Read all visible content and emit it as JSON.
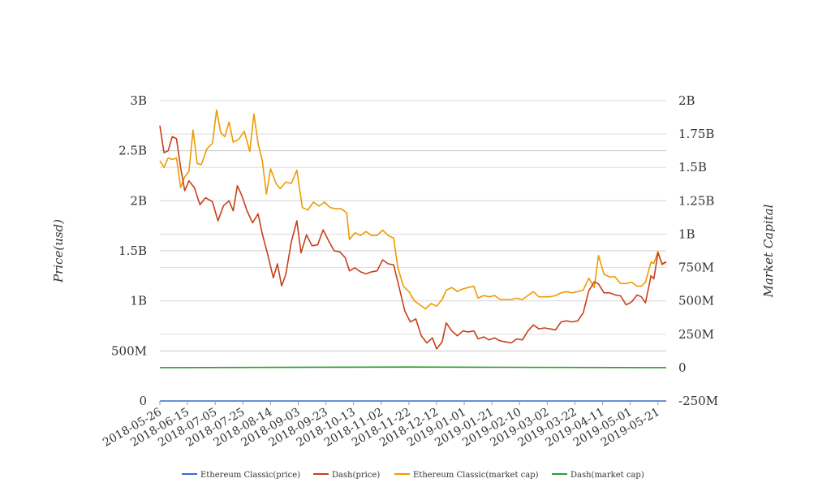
{
  "chart_data": {
    "type": "line",
    "title": "",
    "y_left_label": "Price(usd)",
    "y_right_label": "Market Capital",
    "x_ticks": [
      "2018-05-26",
      "2018-06-15",
      "2018-07-05",
      "2018-07-25",
      "2018-08-14",
      "2018-09-03",
      "2018-09-23",
      "2018-10-13",
      "2018-11-02",
      "2018-11-22",
      "2018-12-12",
      "2019-01-01",
      "2019-01-21",
      "2019-02-10",
      "2019-03-02",
      "2019-03-22",
      "2019-04-11",
      "2019-05-01",
      "2019-05-21"
    ],
    "x_range": [
      "2018-05-26",
      "2019-05-27"
    ],
    "y_left_ticks": [
      "0",
      "500M",
      "1B",
      "1.5B",
      "2B",
      "2.5B",
      "3B"
    ],
    "y_left_range": [
      0,
      3000000000
    ],
    "y_right_ticks": [
      "-250M",
      "0",
      "250M",
      "500M",
      "750M",
      "1B",
      "1.25B",
      "1.5B",
      "1.75B",
      "2B"
    ],
    "y_right_range": [
      -250000000,
      2000000000
    ],
    "legend_position": "bottom",
    "grid": true,
    "series": [
      {
        "name": "Ethereum Classic(price)",
        "axis": "left",
        "color": "#3a6bc9",
        "points": [
          [
            "2018-05-26",
            15
          ],
          [
            "2019-05-27",
            7
          ]
        ]
      },
      {
        "name": "Dash(price)",
        "axis": "left",
        "color": "#c7401a",
        "points": [
          [
            "2018-05-26",
            2750000000
          ],
          [
            "2018-05-29",
            2480000000
          ],
          [
            "2018-06-01",
            2500000000
          ],
          [
            "2018-06-04",
            2640000000
          ],
          [
            "2018-06-07",
            2620000000
          ],
          [
            "2018-06-10",
            2330000000
          ],
          [
            "2018-06-13",
            2100000000
          ],
          [
            "2018-06-16",
            2200000000
          ],
          [
            "2018-06-20",
            2130000000
          ],
          [
            "2018-06-24",
            1960000000
          ],
          [
            "2018-06-28",
            2030000000
          ],
          [
            "2018-07-03",
            1990000000
          ],
          [
            "2018-07-07",
            1800000000
          ],
          [
            "2018-07-11",
            1950000000
          ],
          [
            "2018-07-15",
            2000000000
          ],
          [
            "2018-07-18",
            1900000000
          ],
          [
            "2018-07-21",
            2150000000
          ],
          [
            "2018-07-24",
            2060000000
          ],
          [
            "2018-07-28",
            1900000000
          ],
          [
            "2018-08-01",
            1780000000
          ],
          [
            "2018-08-05",
            1870000000
          ],
          [
            "2018-08-08",
            1670000000
          ],
          [
            "2018-08-12",
            1460000000
          ],
          [
            "2018-08-16",
            1230000000
          ],
          [
            "2018-08-19",
            1370000000
          ],
          [
            "2018-08-22",
            1150000000
          ],
          [
            "2018-08-25",
            1260000000
          ],
          [
            "2018-08-29",
            1590000000
          ],
          [
            "2018-09-02",
            1800000000
          ],
          [
            "2018-09-05",
            1480000000
          ],
          [
            "2018-09-09",
            1660000000
          ],
          [
            "2018-09-13",
            1550000000
          ],
          [
            "2018-09-17",
            1560000000
          ],
          [
            "2018-09-21",
            1710000000
          ],
          [
            "2018-09-25",
            1600000000
          ],
          [
            "2018-09-29",
            1500000000
          ],
          [
            "2018-10-03",
            1490000000
          ],
          [
            "2018-10-07",
            1430000000
          ],
          [
            "2018-10-10",
            1300000000
          ],
          [
            "2018-10-14",
            1330000000
          ],
          [
            "2018-10-18",
            1290000000
          ],
          [
            "2018-10-22",
            1270000000
          ],
          [
            "2018-10-26",
            1290000000
          ],
          [
            "2018-10-30",
            1300000000
          ],
          [
            "2018-11-03",
            1410000000
          ],
          [
            "2018-11-07",
            1370000000
          ],
          [
            "2018-11-11",
            1360000000
          ],
          [
            "2018-11-15",
            1130000000
          ],
          [
            "2018-11-19",
            900000000
          ],
          [
            "2018-11-23",
            790000000
          ],
          [
            "2018-11-27",
            820000000
          ],
          [
            "2018-12-01",
            650000000
          ],
          [
            "2018-12-05",
            580000000
          ],
          [
            "2018-12-09",
            630000000
          ],
          [
            "2018-12-12",
            520000000
          ],
          [
            "2018-12-16",
            590000000
          ],
          [
            "2018-12-19",
            780000000
          ],
          [
            "2018-12-23",
            700000000
          ],
          [
            "2018-12-27",
            650000000
          ],
          [
            "2018-12-31",
            700000000
          ],
          [
            "2019-01-04",
            690000000
          ],
          [
            "2019-01-08",
            700000000
          ],
          [
            "2019-01-11",
            620000000
          ],
          [
            "2019-01-15",
            640000000
          ],
          [
            "2019-01-19",
            610000000
          ],
          [
            "2019-01-23",
            630000000
          ],
          [
            "2019-01-27",
            600000000
          ],
          [
            "2019-01-31",
            590000000
          ],
          [
            "2019-02-04",
            580000000
          ],
          [
            "2019-02-08",
            620000000
          ],
          [
            "2019-02-12",
            610000000
          ],
          [
            "2019-02-16",
            700000000
          ],
          [
            "2019-02-20",
            760000000
          ],
          [
            "2019-02-24",
            720000000
          ],
          [
            "2019-02-28",
            730000000
          ],
          [
            "2019-03-04",
            720000000
          ],
          [
            "2019-03-08",
            710000000
          ],
          [
            "2019-03-12",
            790000000
          ],
          [
            "2019-03-16",
            800000000
          ],
          [
            "2019-03-20",
            790000000
          ],
          [
            "2019-03-24",
            800000000
          ],
          [
            "2019-03-28",
            880000000
          ],
          [
            "2019-04-01",
            1100000000
          ],
          [
            "2019-04-05",
            1190000000
          ],
          [
            "2019-04-08",
            1170000000
          ],
          [
            "2019-04-12",
            1080000000
          ],
          [
            "2019-04-16",
            1080000000
          ],
          [
            "2019-04-20",
            1060000000
          ],
          [
            "2019-04-24",
            1050000000
          ],
          [
            "2019-04-28",
            960000000
          ],
          [
            "2019-05-02",
            990000000
          ],
          [
            "2019-05-06",
            1060000000
          ],
          [
            "2019-05-09",
            1040000000
          ],
          [
            "2019-05-12",
            980000000
          ],
          [
            "2019-05-16",
            1250000000
          ],
          [
            "2019-05-18",
            1220000000
          ],
          [
            "2019-05-21",
            1480000000
          ],
          [
            "2019-05-24",
            1370000000
          ],
          [
            "2019-05-27",
            1390000000
          ]
        ]
      },
      {
        "name": "Ethereum Classic(market cap)",
        "axis": "right",
        "color": "#ee9b00",
        "points": [
          [
            "2018-05-26",
            1550000000
          ],
          [
            "2018-05-29",
            1500000000
          ],
          [
            "2018-06-01",
            1570000000
          ],
          [
            "2018-06-04",
            1560000000
          ],
          [
            "2018-06-07",
            1570000000
          ],
          [
            "2018-06-10",
            1350000000
          ],
          [
            "2018-06-13",
            1430000000
          ],
          [
            "2018-06-16",
            1470000000
          ],
          [
            "2018-06-19",
            1780000000
          ],
          [
            "2018-06-22",
            1530000000
          ],
          [
            "2018-06-25",
            1520000000
          ],
          [
            "2018-06-29",
            1640000000
          ],
          [
            "2018-07-03",
            1680000000
          ],
          [
            "2018-07-06",
            1930000000
          ],
          [
            "2018-07-09",
            1760000000
          ],
          [
            "2018-07-12",
            1730000000
          ],
          [
            "2018-07-15",
            1840000000
          ],
          [
            "2018-07-18",
            1690000000
          ],
          [
            "2018-07-22",
            1710000000
          ],
          [
            "2018-07-26",
            1770000000
          ],
          [
            "2018-07-30",
            1620000000
          ],
          [
            "2018-08-02",
            1900000000
          ],
          [
            "2018-08-05",
            1680000000
          ],
          [
            "2018-08-08",
            1550000000
          ],
          [
            "2018-08-11",
            1300000000
          ],
          [
            "2018-08-14",
            1490000000
          ],
          [
            "2018-08-18",
            1380000000
          ],
          [
            "2018-08-21",
            1340000000
          ],
          [
            "2018-08-25",
            1390000000
          ],
          [
            "2018-08-29",
            1380000000
          ],
          [
            "2018-09-02",
            1480000000
          ],
          [
            "2018-09-06",
            1200000000
          ],
          [
            "2018-09-10",
            1180000000
          ],
          [
            "2018-09-14",
            1240000000
          ],
          [
            "2018-09-18",
            1210000000
          ],
          [
            "2018-09-22",
            1240000000
          ],
          [
            "2018-09-26",
            1200000000
          ],
          [
            "2018-09-30",
            1190000000
          ],
          [
            "2018-10-04",
            1190000000
          ],
          [
            "2018-10-08",
            1160000000
          ],
          [
            "2018-10-10",
            960000000
          ],
          [
            "2018-10-14",
            1010000000
          ],
          [
            "2018-10-18",
            990000000
          ],
          [
            "2018-10-22",
            1020000000
          ],
          [
            "2018-10-26",
            990000000
          ],
          [
            "2018-10-30",
            990000000
          ],
          [
            "2018-11-03",
            1030000000
          ],
          [
            "2018-11-07",
            990000000
          ],
          [
            "2018-11-11",
            970000000
          ],
          [
            "2018-11-14",
            750000000
          ],
          [
            "2018-11-18",
            610000000
          ],
          [
            "2018-11-22",
            570000000
          ],
          [
            "2018-11-26",
            500000000
          ],
          [
            "2018-11-30",
            470000000
          ],
          [
            "2018-12-04",
            440000000
          ],
          [
            "2018-12-08",
            480000000
          ],
          [
            "2018-12-12",
            460000000
          ],
          [
            "2018-12-16",
            510000000
          ],
          [
            "2018-12-19",
            580000000
          ],
          [
            "2018-12-23",
            600000000
          ],
          [
            "2018-12-27",
            570000000
          ],
          [
            "2018-12-31",
            590000000
          ],
          [
            "2019-01-04",
            600000000
          ],
          [
            "2019-01-08",
            610000000
          ],
          [
            "2019-01-11",
            520000000
          ],
          [
            "2019-01-15",
            540000000
          ],
          [
            "2019-01-19",
            530000000
          ],
          [
            "2019-01-23",
            540000000
          ],
          [
            "2019-01-27",
            510000000
          ],
          [
            "2019-01-31",
            510000000
          ],
          [
            "2019-02-04",
            510000000
          ],
          [
            "2019-02-08",
            520000000
          ],
          [
            "2019-02-12",
            510000000
          ],
          [
            "2019-02-16",
            540000000
          ],
          [
            "2019-02-20",
            570000000
          ],
          [
            "2019-02-24",
            530000000
          ],
          [
            "2019-02-28",
            530000000
          ],
          [
            "2019-03-04",
            530000000
          ],
          [
            "2019-03-08",
            540000000
          ],
          [
            "2019-03-12",
            560000000
          ],
          [
            "2019-03-16",
            570000000
          ],
          [
            "2019-03-20",
            560000000
          ],
          [
            "2019-03-24",
            570000000
          ],
          [
            "2019-03-28",
            580000000
          ],
          [
            "2019-04-01",
            670000000
          ],
          [
            "2019-04-05",
            600000000
          ],
          [
            "2019-04-08",
            840000000
          ],
          [
            "2019-04-12",
            700000000
          ],
          [
            "2019-04-16",
            680000000
          ],
          [
            "2019-04-20",
            680000000
          ],
          [
            "2019-04-24",
            630000000
          ],
          [
            "2019-04-28",
            630000000
          ],
          [
            "2019-05-02",
            640000000
          ],
          [
            "2019-05-06",
            610000000
          ],
          [
            "2019-05-09",
            610000000
          ],
          [
            "2019-05-12",
            640000000
          ],
          [
            "2019-05-16",
            790000000
          ],
          [
            "2019-05-18",
            780000000
          ],
          [
            "2019-05-21",
            870000000
          ],
          [
            "2019-05-24",
            770000000
          ],
          [
            "2019-05-27",
            790000000
          ]
        ]
      },
      {
        "name": "Dash(market cap)",
        "axis": "right",
        "color": "#2e9c2e",
        "points": [
          [
            "2018-05-26",
            0
          ],
          [
            "2018-11-22",
            4000000
          ],
          [
            "2019-05-27",
            0
          ]
        ]
      }
    ]
  }
}
